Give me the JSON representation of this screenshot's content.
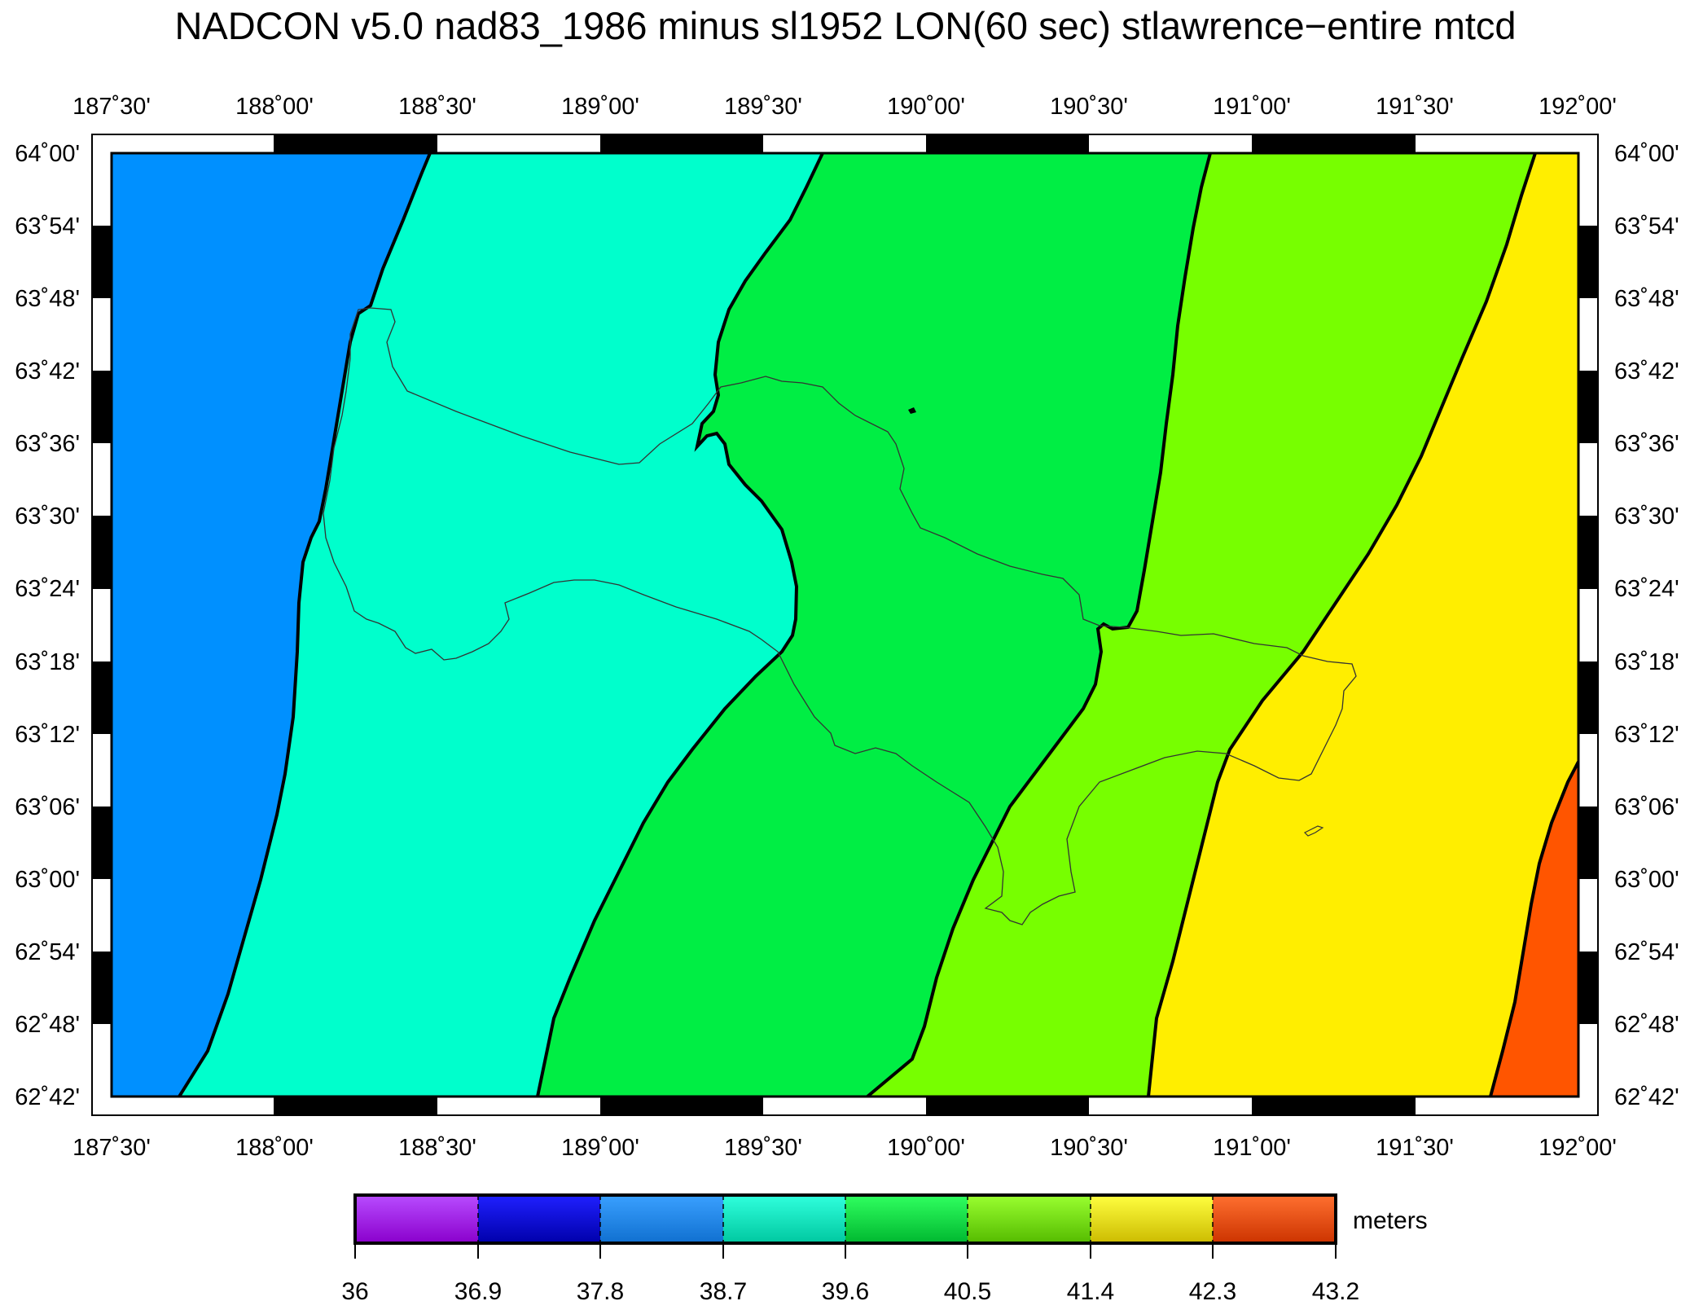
{
  "title": "NADCON v5.0 nad83_1986 minus sl1952 LON(60 sec) stlawrence−entire mtcd",
  "longitude_labels": [
    "187˚30'",
    "188˚00'",
    "188˚30'",
    "189˚00'",
    "189˚30'",
    "190˚00'",
    "190˚30'",
    "191˚00'",
    "191˚30'",
    "192˚00'"
  ],
  "latitude_labels": [
    "64˚00'",
    "63˚54'",
    "63˚48'",
    "63˚42'",
    "63˚36'",
    "63˚30'",
    "63˚24'",
    "63˚18'",
    "63˚12'",
    "63˚06'",
    "63˚00'",
    "62˚54'",
    "62˚48'",
    "62˚42'"
  ],
  "map_extent": {
    "lon_min": 187.5,
    "lon_max": 192.0,
    "lat_min": 62.7,
    "lat_max": 64.0
  },
  "colorbar": {
    "unit_label": "meters",
    "tick_labels": [
      "36",
      "36.9",
      "37.8",
      "38.7",
      "39.6",
      "40.5",
      "41.4",
      "42.3",
      "43.2"
    ],
    "colors": [
      "#a020f0",
      "#0000ee",
      "#1e90ff",
      "#00ffcc",
      "#00ee44",
      "#76ee00",
      "#ffee00",
      "#ff5500"
    ]
  },
  "contour_zones": [
    {
      "range": "37.8–38.7",
      "color": "#0090ff"
    },
    {
      "range": "38.7–39.6",
      "color": "#00ffcc"
    },
    {
      "range": "39.6–40.5",
      "color": "#00ee44"
    },
    {
      "range": "40.5–41.4",
      "color": "#77ff00"
    },
    {
      "range": "41.4–42.3",
      "color": "#ffee00"
    },
    {
      "range": "42.3–43.2",
      "color": "#ff5500"
    }
  ]
}
